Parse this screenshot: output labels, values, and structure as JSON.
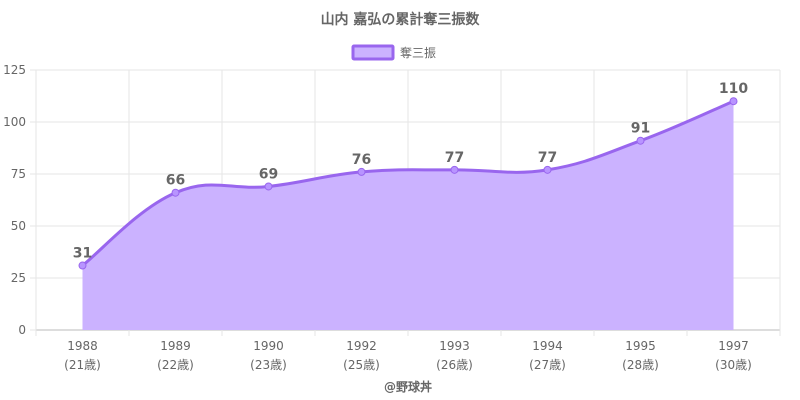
{
  "colors": {
    "line": "#9966ee",
    "fill": "#cbb2ff",
    "point": "#b894ff",
    "grid": "#e5e5e5",
    "axis": "#bbbbbb",
    "text": "#666666"
  },
  "chart_data": {
    "type": "area",
    "title": "山内 嘉弘の累計奪三振数",
    "legend": {
      "label": "奪三振",
      "position": "top"
    },
    "categories": [
      "1988",
      "1989",
      "1990",
      "1992",
      "1993",
      "1994",
      "1995",
      "1997"
    ],
    "sublabels": [
      "(21歳)",
      "(22歳)",
      "(23歳)",
      "(25歳)",
      "(26歳)",
      "(27歳)",
      "(28歳)",
      "(30歳)"
    ],
    "series": [
      {
        "name": "奪三振",
        "values": [
          31,
          66,
          69,
          76,
          77,
          77,
          91,
          110
        ]
      }
    ],
    "ylim": [
      0,
      125
    ],
    "yticks": [
      0,
      25,
      50,
      75,
      100,
      125
    ],
    "grid": true,
    "footer": "@野球丼"
  }
}
